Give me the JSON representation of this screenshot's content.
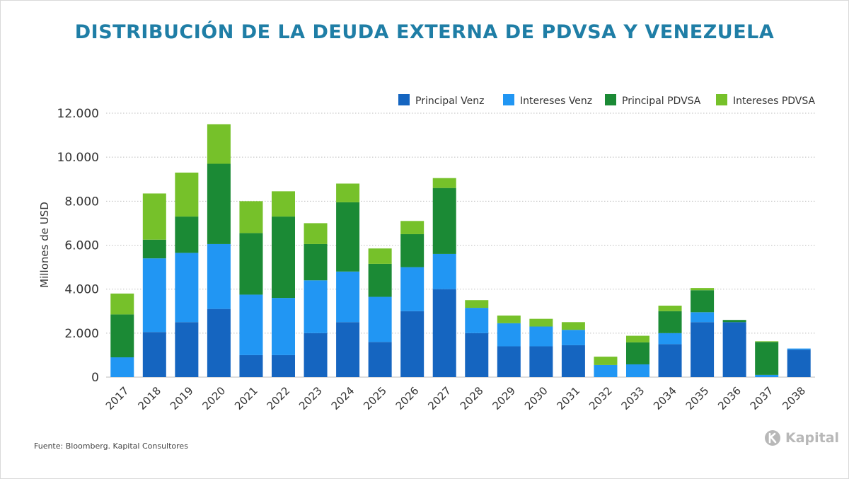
{
  "title": "DISTRIBUCIÓN DE LA DEUDA EXTERNA DE PDVSA Y VENEZUELA",
  "source": "Fuente: Bloomberg. Kapital Consultores",
  "brand": {
    "name": "Kapital",
    "icon": "kapital-logo-icon"
  },
  "colors": {
    "principal_venz": "#1565c0",
    "intereses_venz": "#2196f3",
    "principal_pdvsa": "#1b8a35",
    "intereses_pdvsa": "#76c12a",
    "title": "#1f7ea6"
  },
  "chart_data": {
    "type": "bar",
    "stacked": true,
    "title": "DISTRIBUCIÓN DE LA DEUDA EXTERNA DE PDVSA Y VENEZUELA",
    "xlabel": "",
    "ylabel": "Millones de USD",
    "ylim": [
      0,
      12000
    ],
    "yticks": [
      0,
      2000,
      4000,
      6000,
      8000,
      10000,
      12000
    ],
    "ytick_labels": [
      "0",
      "2.000",
      "4.000",
      "6.000",
      "8.000",
      "10.000",
      "12.000"
    ],
    "grid": "horizontal dotted",
    "legend_position": "top-right",
    "categories": [
      "2017",
      "2018",
      "2019",
      "2020",
      "2021",
      "2022",
      "2023",
      "2024",
      "2025",
      "2026",
      "2027",
      "2028",
      "2029",
      "2030",
      "2031",
      "2032",
      "2033",
      "2034",
      "2035",
      "2036",
      "2037",
      "2038"
    ],
    "series": [
      {
        "name": "Principal Venz",
        "color": "#1565c0",
        "values": [
          0,
          2050,
          2500,
          3100,
          1000,
          1000,
          2000,
          2500,
          1600,
          3000,
          4000,
          2000,
          1400,
          1400,
          1450,
          0,
          0,
          1500,
          2500,
          2500,
          0,
          1250
        ]
      },
      {
        "name": "Intereses Venz",
        "color": "#2196f3",
        "values": [
          900,
          3350,
          3150,
          2950,
          2750,
          2600,
          2400,
          2300,
          2050,
          2000,
          1600,
          1150,
          1050,
          900,
          700,
          550,
          580,
          500,
          450,
          0,
          100,
          50
        ]
      },
      {
        "name": "Principal PDVSA",
        "color": "#1b8a35",
        "values": [
          1950,
          850,
          1650,
          3650,
          2800,
          3700,
          1650,
          3150,
          1500,
          1500,
          3000,
          0,
          0,
          0,
          0,
          0,
          1000,
          1000,
          1000,
          100,
          1500,
          0
        ]
      },
      {
        "name": "Intereses PDVSA",
        "color": "#76c12a",
        "values": [
          950,
          2100,
          2000,
          1800,
          1450,
          1150,
          950,
          850,
          700,
          600,
          450,
          350,
          350,
          350,
          350,
          380,
          300,
          250,
          100,
          0,
          30,
          0
        ]
      }
    ]
  }
}
